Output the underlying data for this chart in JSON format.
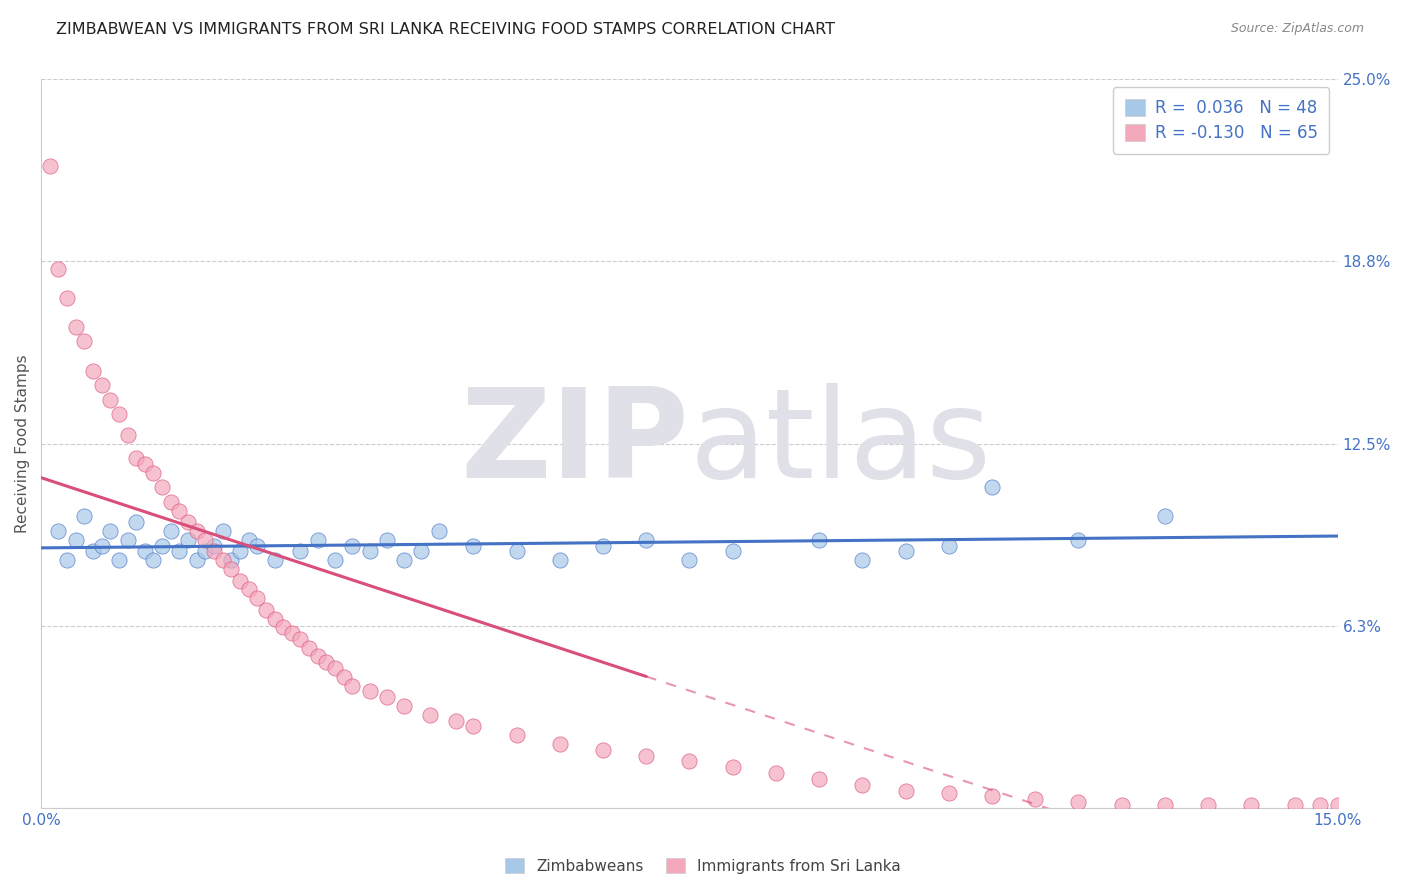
{
  "title": "ZIMBABWEAN VS IMMIGRANTS FROM SRI LANKA RECEIVING FOOD STAMPS CORRELATION CHART",
  "source": "Source: ZipAtlas.com",
  "ylabel": "Receiving Food Stamps",
  "legend_labels": [
    "Zimbabweans",
    "Immigrants from Sri Lanka"
  ],
  "r_values": [
    0.036,
    -0.13
  ],
  "n_values": [
    48,
    65
  ],
  "xlim": [
    0.0,
    0.15
  ],
  "ylim": [
    0.0,
    0.25
  ],
  "yticks": [
    0.0,
    0.0625,
    0.125,
    0.1875,
    0.25
  ],
  "ytick_labels": [
    "",
    "6.3%",
    "12.5%",
    "18.8%",
    "25.0%"
  ],
  "xticks": [
    0.0,
    0.025,
    0.05,
    0.075,
    0.1,
    0.125,
    0.15
  ],
  "xtick_labels": [
    "0.0%",
    "",
    "",
    "",
    "",
    "",
    "15.0%"
  ],
  "color_blue": "#a8c8e8",
  "color_pink": "#f4a8bc",
  "line_blue": "#4472c4",
  "line_pink": "#d94f7a",
  "watermark_zip": "ZIP",
  "watermark_atlas": "atlas",
  "background_color": "#ffffff",
  "title_fontsize": 11.5,
  "axis_label_fontsize": 11,
  "tick_fontsize": 11,
  "blue_scatter_x": [
    0.002,
    0.003,
    0.004,
    0.005,
    0.006,
    0.007,
    0.008,
    0.009,
    0.01,
    0.011,
    0.012,
    0.013,
    0.014,
    0.015,
    0.016,
    0.017,
    0.018,
    0.019,
    0.02,
    0.021,
    0.022,
    0.023,
    0.024,
    0.025,
    0.027,
    0.03,
    0.032,
    0.034,
    0.036,
    0.038,
    0.04,
    0.042,
    0.044,
    0.046,
    0.05,
    0.055,
    0.06,
    0.065,
    0.07,
    0.075,
    0.08,
    0.09,
    0.095,
    0.1,
    0.105,
    0.11,
    0.12,
    0.13
  ],
  "blue_scatter_y": [
    0.095,
    0.085,
    0.092,
    0.1,
    0.088,
    0.09,
    0.095,
    0.085,
    0.092,
    0.098,
    0.088,
    0.085,
    0.09,
    0.095,
    0.088,
    0.092,
    0.085,
    0.088,
    0.09,
    0.095,
    0.085,
    0.088,
    0.092,
    0.09,
    0.085,
    0.088,
    0.092,
    0.085,
    0.09,
    0.088,
    0.092,
    0.085,
    0.088,
    0.095,
    0.09,
    0.088,
    0.085,
    0.09,
    0.092,
    0.085,
    0.088,
    0.092,
    0.085,
    0.088,
    0.09,
    0.11,
    0.092,
    0.1
  ],
  "pink_scatter_x": [
    0.001,
    0.002,
    0.003,
    0.004,
    0.005,
    0.006,
    0.007,
    0.008,
    0.009,
    0.01,
    0.011,
    0.012,
    0.013,
    0.014,
    0.015,
    0.016,
    0.017,
    0.018,
    0.019,
    0.02,
    0.021,
    0.022,
    0.023,
    0.024,
    0.025,
    0.026,
    0.027,
    0.028,
    0.029,
    0.03,
    0.031,
    0.032,
    0.033,
    0.034,
    0.035,
    0.036,
    0.038,
    0.04,
    0.042,
    0.045,
    0.048,
    0.05,
    0.055,
    0.06,
    0.065,
    0.07,
    0.075,
    0.08,
    0.085,
    0.09,
    0.095,
    0.1,
    0.105,
    0.11,
    0.115,
    0.12,
    0.125,
    0.13,
    0.135,
    0.14,
    0.145,
    0.148,
    0.15,
    0.152,
    0.155
  ],
  "pink_scatter_y": [
    0.22,
    0.185,
    0.175,
    0.165,
    0.16,
    0.15,
    0.145,
    0.14,
    0.135,
    0.128,
    0.12,
    0.118,
    0.115,
    0.11,
    0.105,
    0.102,
    0.098,
    0.095,
    0.092,
    0.088,
    0.085,
    0.082,
    0.078,
    0.075,
    0.072,
    0.068,
    0.065,
    0.062,
    0.06,
    0.058,
    0.055,
    0.052,
    0.05,
    0.048,
    0.045,
    0.042,
    0.04,
    0.038,
    0.035,
    0.032,
    0.03,
    0.028,
    0.025,
    0.022,
    0.02,
    0.018,
    0.016,
    0.014,
    0.012,
    0.01,
    0.008,
    0.006,
    0.005,
    0.004,
    0.003,
    0.002,
    0.001,
    0.001,
    0.001,
    0.001,
    0.001,
    0.001,
    0.001,
    0.001,
    0.001
  ]
}
